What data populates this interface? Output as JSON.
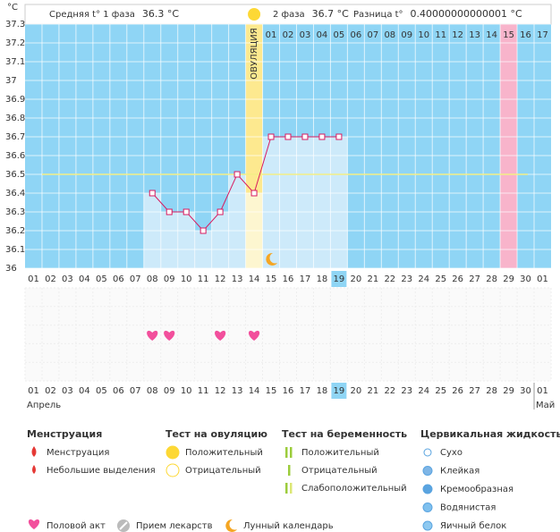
{
  "header": {
    "phase1_label": "Средняя t° 1 фаза",
    "phase1_value": "36.3 °C",
    "phase2_label": "2 фаза",
    "phase2_value": "36.7 °C",
    "diff_label": "Разница t°",
    "diff_value": "0.40000000000001 °C"
  },
  "chart_data": {
    "type": "line",
    "y_unit": "°C",
    "categories": [
      "01",
      "02",
      "03",
      "04",
      "05",
      "06",
      "07",
      "08",
      "09",
      "10",
      "11",
      "12",
      "13",
      "14",
      "15",
      "16",
      "17",
      "18",
      "19",
      "20",
      "21",
      "22",
      "23",
      "24",
      "25",
      "26",
      "27",
      "28",
      "29",
      "30",
      "01"
    ],
    "months": [
      "Апрель",
      "Май"
    ],
    "cycle_days": [
      null,
      null,
      null,
      null,
      null,
      null,
      null,
      null,
      null,
      null,
      null,
      null,
      null,
      null,
      "01",
      "02",
      "03",
      "04",
      "05",
      "06",
      "07",
      "08",
      "09",
      "10",
      "11",
      "12",
      "13",
      "14",
      "15",
      "16",
      "17"
    ],
    "ovulation_label": "ОВУЛЯЦИЯ",
    "ovulation_index": 13,
    "period_index": 28,
    "today_index": 18,
    "moon_index": 14,
    "weekend_indices": [
      5,
      6,
      12,
      13,
      19,
      20,
      26,
      27
    ],
    "sex_indices": [
      7,
      8,
      11,
      13
    ],
    "series": [
      {
        "name": "t°",
        "color": "#d81b60",
        "values": [
          null,
          null,
          null,
          null,
          null,
          null,
          null,
          36.4,
          36.3,
          36.3,
          36.2,
          36.3,
          36.5,
          36.4,
          36.7,
          36.7,
          36.7,
          36.7,
          36.7,
          null,
          null,
          null,
          null,
          null,
          null,
          null,
          null,
          null,
          null,
          null,
          null
        ]
      }
    ],
    "baseline": 36.5,
    "ylim": [
      36,
      37.3
    ],
    "yticks": [
      36,
      36.1,
      36.2,
      36.3,
      36.4,
      36.5,
      36.6,
      36.7,
      36.8,
      36.9,
      37,
      37.1,
      37.2,
      37.3
    ],
    "grid": true
  },
  "legend": {
    "groups": [
      {
        "title": "Менструация",
        "items": [
          "Менструация",
          "Небольшие выделения"
        ]
      },
      {
        "title": "Тест на овуляцию",
        "items": [
          "Положительный",
          "Отрицательный"
        ]
      },
      {
        "title": "Тест на беременность",
        "items": [
          "Положительный",
          "Отрицательный",
          "Слабоположительный"
        ]
      },
      {
        "title": "Цервикальная жидкость",
        "items": [
          "Сухо",
          "Клейкая",
          "Кремообразная",
          "Водянистая",
          "Яичный белок"
        ]
      }
    ],
    "extra": [
      "Половой акт",
      "Прием лекарств",
      "Лунный календарь"
    ]
  }
}
